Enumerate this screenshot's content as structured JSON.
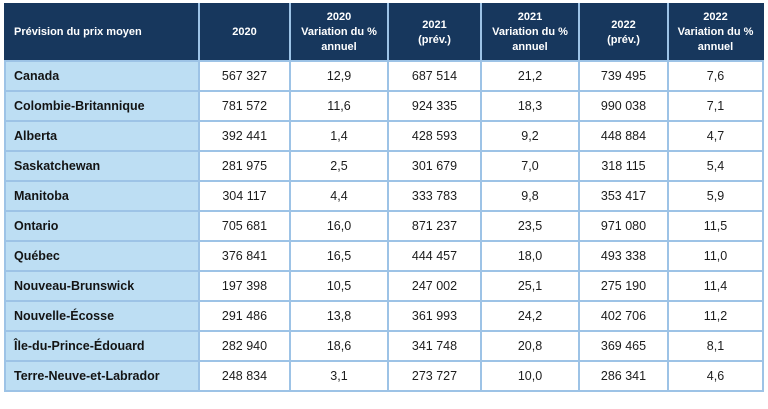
{
  "colors": {
    "header_bg": "#17375D",
    "header_text": "#FFFFFF",
    "label_cell_bg": "#BDDEF3",
    "border": "#9DC3E6",
    "data_text": "#1C1C1C"
  },
  "table": {
    "columns": [
      {
        "id": "label",
        "lines": [
          "Prévision du prix moyen"
        ]
      },
      {
        "id": "y2020",
        "lines": [
          "2020"
        ]
      },
      {
        "id": "y2020-var",
        "lines": [
          "2020",
          "Variation du %",
          "annuel"
        ]
      },
      {
        "id": "y2021",
        "lines": [
          "2021",
          "(prév.)"
        ]
      },
      {
        "id": "y2021-var",
        "lines": [
          "2021",
          "Variation du %",
          "annuel"
        ]
      },
      {
        "id": "y2022",
        "lines": [
          "2022",
          "(prév.)"
        ]
      },
      {
        "id": "y2022-var",
        "lines": [
          "2022",
          "Variation du %",
          "annuel"
        ]
      }
    ],
    "rows": [
      {
        "label": "Canada",
        "values": [
          "567 327",
          "12,9",
          "687 514",
          "21,2",
          "739 495",
          "7,6"
        ]
      },
      {
        "label": "Colombie-Britannique",
        "values": [
          "781 572",
          "11,6",
          "924 335",
          "18,3",
          "990 038",
          "7,1"
        ]
      },
      {
        "label": "Alberta",
        "values": [
          "392 441",
          "1,4",
          "428 593",
          "9,2",
          "448 884",
          "4,7"
        ]
      },
      {
        "label": "Saskatchewan",
        "values": [
          "281 975",
          "2,5",
          "301 679",
          "7,0",
          "318 115",
          "5,4"
        ]
      },
      {
        "label": "Manitoba",
        "values": [
          "304 117",
          "4,4",
          "333 783",
          "9,8",
          "353 417",
          "5,9"
        ]
      },
      {
        "label": "Ontario",
        "values": [
          "705 681",
          "16,0",
          "871 237",
          "23,5",
          "971 080",
          "11,5"
        ]
      },
      {
        "label": "Québec",
        "values": [
          "376 841",
          "16,5",
          "444 457",
          "18,0",
          "493 338",
          "11,0"
        ]
      },
      {
        "label": "Nouveau-Brunswick",
        "values": [
          "197 398",
          "10,5",
          "247 002",
          "25,1",
          "275 190",
          "11,4"
        ]
      },
      {
        "label": "Nouvelle-Écosse",
        "values": [
          "291 486",
          "13,8",
          "361 993",
          "24,2",
          "402 706",
          "11,2"
        ]
      },
      {
        "label": "Île-du-Prince-Édouard",
        "values": [
          "282 940",
          "18,6",
          "341 748",
          "20,8",
          "369 465",
          "8,1"
        ]
      },
      {
        "label": "Terre-Neuve-et-Labrador",
        "values": [
          "248 834",
          "3,1",
          "273 727",
          "10,0",
          "286 341",
          "4,6"
        ]
      }
    ]
  },
  "chart_data": {
    "type": "table",
    "title": "Prévision du prix moyen",
    "columns": [
      "Prévision du prix moyen",
      "2020",
      "2020 Variation du % annuel",
      "2021 (prév.)",
      "2021 Variation du % annuel",
      "2022 (prév.)",
      "2022 Variation du % annuel"
    ],
    "rows": [
      [
        "Canada",
        567327,
        12.9,
        687514,
        21.2,
        739495,
        7.6
      ],
      [
        "Colombie-Britannique",
        781572,
        11.6,
        924335,
        18.3,
        990038,
        7.1
      ],
      [
        "Alberta",
        392441,
        1.4,
        428593,
        9.2,
        448884,
        4.7
      ],
      [
        "Saskatchewan",
        281975,
        2.5,
        301679,
        7.0,
        318115,
        5.4
      ],
      [
        "Manitoba",
        304117,
        4.4,
        333783,
        9.8,
        353417,
        5.9
      ],
      [
        "Ontario",
        705681,
        16.0,
        871237,
        23.5,
        971080,
        11.5
      ],
      [
        "Québec",
        376841,
        16.5,
        444457,
        18.0,
        493338,
        11.0
      ],
      [
        "Nouveau-Brunswick",
        197398,
        10.5,
        247002,
        25.1,
        275190,
        11.4
      ],
      [
        "Nouvelle-Écosse",
        291486,
        13.8,
        361993,
        24.2,
        402706,
        11.2
      ],
      [
        "Île-du-Prince-Édouard",
        282940,
        18.6,
        341748,
        20.8,
        369465,
        8.1
      ],
      [
        "Terre-Neuve-et-Labrador",
        248834,
        3.1,
        273727,
        10.0,
        286341,
        4.6
      ]
    ],
    "notes": "Number format: thousands separated by space, decimal comma (French-Canadian locale)."
  }
}
